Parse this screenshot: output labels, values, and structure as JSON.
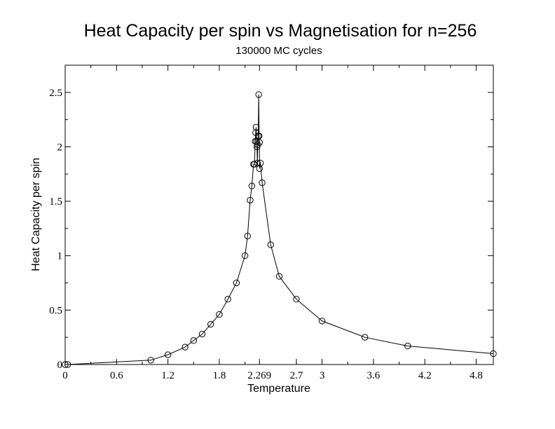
{
  "chart_data": {
    "type": "line",
    "title": "Heat Capacity per spin vs Magnetisation for n=256",
    "subtitle": "130000 MC cycles",
    "xlabel": "Temperature",
    "ylabel": "Heat Capacity per spin",
    "xlim": [
      0,
      5
    ],
    "ylim": [
      0,
      2.75
    ],
    "x_ticks": [
      0,
      0.6,
      1.2,
      1.8,
      2.269,
      2.7,
      3,
      3.6,
      4.2,
      4.8
    ],
    "x_tick_labels": [
      "0",
      "0.6",
      "1.2",
      "1.8",
      "2.269",
      "2.7",
      "3",
      "3.6",
      "4.2",
      "4.8"
    ],
    "y_ticks": [
      0,
      0.5,
      1,
      1.5,
      2,
      2.5
    ],
    "y_tick_labels": [
      "0",
      "0.5",
      "1",
      "1.5",
      "2",
      "2.5"
    ],
    "grid": false,
    "legend": "none",
    "marker": "open-circle",
    "line_color": "#000000",
    "series": [
      {
        "x": [
          0.0,
          0.03,
          1.0,
          1.2,
          1.4,
          1.5,
          1.6,
          1.7,
          1.8,
          1.9,
          2.0,
          2.1,
          2.13,
          2.16,
          2.18,
          2.2,
          2.21,
          2.22,
          2.225,
          2.23,
          2.235,
          2.24,
          2.245,
          2.25,
          2.255,
          2.26,
          2.265,
          2.269,
          2.27,
          2.28,
          2.3,
          2.4,
          2.5,
          2.7,
          3.0,
          3.5,
          4.0,
          5.0
        ],
        "y": [
          0.0,
          0.0,
          0.04,
          0.09,
          0.16,
          0.22,
          0.28,
          0.37,
          0.46,
          0.6,
          0.75,
          1.0,
          1.18,
          1.51,
          1.64,
          1.84,
          1.84,
          2.05,
          2.13,
          2.18,
          2.05,
          2.0,
          1.85,
          2.02,
          2.1,
          2.48,
          2.1,
          2.04,
          1.8,
          1.85,
          1.67,
          1.1,
          0.81,
          0.6,
          0.4,
          0.25,
          0.17,
          0.1
        ]
      }
    ]
  }
}
